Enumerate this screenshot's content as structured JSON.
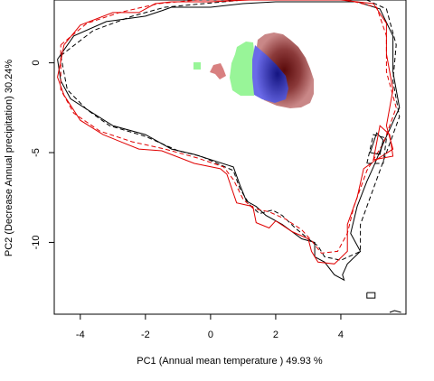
{
  "chart_data": {
    "type": "contour_density",
    "xlabel": "PC1 (Annual mean temperature ) 49.93 %",
    "ylabel": "PC2 (Decrease Annual precipitation) 30.24%",
    "xlim": [
      -4.8,
      6.0
    ],
    "ylim": [
      -14.0,
      3.5
    ],
    "x_ticks": [
      -4,
      -2,
      0,
      2,
      4
    ],
    "y_ticks": [
      0,
      -5,
      -10
    ],
    "x_tick_labels": [
      "-4",
      "-2",
      "0",
      "2",
      "4"
    ],
    "y_tick_labels": [
      "0",
      "-5",
      "-10"
    ],
    "grid": false,
    "legend": "none",
    "colors": {
      "black_contour": "#000000",
      "red_contour": "#e00000",
      "niche_dark": "#5a0a0a",
      "niche_light": "#c98787",
      "overlap_blue": "#2828c8",
      "native_green": "#98f598",
      "outlier_pink": "#d88080"
    },
    "series": [
      {
        "style": "solid",
        "color": "#000000",
        "points": [
          [
            -4.7,
            0.2
          ],
          [
            -4.2,
            1.5
          ],
          [
            -3.2,
            2.3
          ],
          [
            -2,
            2.6
          ],
          [
            -1.5,
            2.9
          ],
          [
            -1.2,
            3.1
          ],
          [
            0,
            3.1
          ],
          [
            1,
            3.3
          ],
          [
            2,
            3.4
          ],
          [
            3,
            3.4
          ],
          [
            4.5,
            3.4
          ],
          [
            5.2,
            3.0
          ],
          [
            5.6,
            1.5
          ],
          [
            5.6,
            -0.5
          ],
          [
            5.8,
            -2.5
          ],
          [
            5.3,
            -4.5
          ],
          [
            5.0,
            -5.8
          ],
          [
            4.8,
            -6.6
          ],
          [
            4.5,
            -8
          ],
          [
            4.3,
            -9.5
          ],
          [
            4.6,
            -10.5
          ],
          [
            4.2,
            -11.2
          ],
          [
            4.05,
            -11.8
          ],
          [
            4.1,
            -12.1
          ],
          [
            3.8,
            -11.8
          ],
          [
            3.5,
            -11.1
          ],
          [
            3.2,
            -10.8
          ],
          [
            3.2,
            -10.0
          ],
          [
            2.8,
            -9.8
          ],
          [
            2.2,
            -9.0
          ],
          [
            1.7,
            -8.5
          ],
          [
            1.4,
            -8.0
          ],
          [
            1.1,
            -7.7
          ],
          [
            0.9,
            -6.8
          ],
          [
            0.7,
            -5.8
          ],
          [
            -0.5,
            -5.1
          ],
          [
            -1.2,
            -4.8
          ],
          [
            -2.0,
            -4.0
          ],
          [
            -3.0,
            -3.5
          ],
          [
            -3.7,
            -2.7
          ],
          [
            -4.3,
            -2.0
          ],
          [
            -4.6,
            -1.0
          ],
          [
            -4.7,
            0.2
          ]
        ]
      },
      {
        "style": "dashed",
        "color": "#000000",
        "points": [
          [
            -4.6,
            0.4
          ],
          [
            -3.6,
            1.8
          ],
          [
            -2.4,
            2.6
          ],
          [
            -1.4,
            3.1
          ],
          [
            -0.2,
            3.3
          ],
          [
            1,
            3.5
          ],
          [
            2.2,
            3.5
          ],
          [
            3.5,
            3.5
          ],
          [
            4.8,
            3.5
          ],
          [
            5.4,
            3.0
          ],
          [
            5.7,
            1.0
          ],
          [
            5.6,
            -1.0
          ],
          [
            5.8,
            -3.0
          ],
          [
            5.4,
            -5.0
          ],
          [
            5.0,
            -7.0
          ],
          [
            4.6,
            -9.0
          ],
          [
            4.6,
            -10.5
          ],
          [
            4.0,
            -11.0
          ],
          [
            3.5,
            -10.8
          ],
          [
            3.3,
            -10.2
          ],
          [
            3.0,
            -9.8
          ],
          [
            2.6,
            -9.2
          ],
          [
            2.2,
            -8.5
          ],
          [
            1.9,
            -8.2
          ],
          [
            1.5,
            -8.4
          ],
          [
            1.2,
            -7.9
          ],
          [
            0.9,
            -7.0
          ],
          [
            0.7,
            -6.0
          ],
          [
            -0.3,
            -5.2
          ],
          [
            -1.0,
            -4.9
          ],
          [
            -2.0,
            -4.1
          ],
          [
            -3.1,
            -3.5
          ],
          [
            -3.8,
            -2.6
          ],
          [
            -4.4,
            -1.5
          ],
          [
            -4.6,
            0.4
          ]
        ]
      },
      {
        "style": "solid",
        "color": "#e00000",
        "points": [
          [
            -4.5,
            1.0
          ],
          [
            -4.0,
            2.1
          ],
          [
            -3.0,
            2.8
          ],
          [
            -2.2,
            2.8
          ],
          [
            -1.7,
            3.3
          ],
          [
            -1.2,
            3.4
          ],
          [
            0,
            3.4
          ],
          [
            1.2,
            3.5
          ],
          [
            2.5,
            3.5
          ],
          [
            4.0,
            3.5
          ],
          [
            5.0,
            3.3
          ],
          [
            5.4,
            2.2
          ],
          [
            5.4,
            0.5
          ],
          [
            5.6,
            -1.5
          ],
          [
            5.4,
            -3.5
          ],
          [
            5.6,
            -4.8
          ],
          [
            5.0,
            -5.5
          ],
          [
            4.7,
            -5.9
          ],
          [
            4.5,
            -7.5
          ],
          [
            4.2,
            -9.0
          ],
          [
            4.2,
            -10.5
          ],
          [
            3.8,
            -11.2
          ],
          [
            3.3,
            -11.1
          ],
          [
            3.1,
            -10.5
          ],
          [
            3.0,
            -9.8
          ],
          [
            2.5,
            -9.4
          ],
          [
            2.0,
            -8.8
          ],
          [
            1.8,
            -9.2
          ],
          [
            1.4,
            -8.9
          ],
          [
            1.3,
            -8.0
          ],
          [
            0.8,
            -7.8
          ],
          [
            0.5,
            -6.2
          ],
          [
            0.3,
            -5.9
          ],
          [
            -0.5,
            -5.6
          ],
          [
            -1.5,
            -4.9
          ],
          [
            -2.2,
            -4.8
          ],
          [
            -3.3,
            -4.0
          ],
          [
            -4.0,
            -3.2
          ],
          [
            -4.5,
            -1.8
          ],
          [
            -4.7,
            -0.8
          ],
          [
            -4.5,
            1.0
          ]
        ]
      },
      {
        "style": "dashed",
        "color": "#e00000",
        "points": [
          [
            -4.6,
            1.0
          ],
          [
            -3.8,
            2.2
          ],
          [
            -2.8,
            2.8
          ],
          [
            -1.6,
            3.3
          ],
          [
            -0.4,
            3.5
          ],
          [
            1.0,
            3.5
          ],
          [
            2.6,
            3.5
          ],
          [
            4.2,
            3.5
          ],
          [
            5.1,
            3.1
          ],
          [
            5.4,
            1.5
          ],
          [
            5.4,
            -0.5
          ],
          [
            5.7,
            -2.5
          ],
          [
            5.3,
            -4.5
          ],
          [
            4.8,
            -6.0
          ],
          [
            4.4,
            -8.0
          ],
          [
            4.2,
            -9.5
          ],
          [
            3.9,
            -10.5
          ],
          [
            3.4,
            -10.6
          ],
          [
            3.1,
            -9.9
          ],
          [
            2.8,
            -9.3
          ],
          [
            2.3,
            -8.7
          ],
          [
            1.8,
            -8.3
          ],
          [
            1.3,
            -8.1
          ],
          [
            1.0,
            -7.6
          ],
          [
            0.7,
            -6.5
          ],
          [
            0.4,
            -5.8
          ],
          [
            -0.4,
            -5.3
          ],
          [
            -1.4,
            -4.8
          ],
          [
            -2.4,
            -4.4
          ],
          [
            -3.4,
            -3.8
          ],
          [
            -4.2,
            -2.8
          ],
          [
            -4.6,
            -1.5
          ],
          [
            -4.6,
            1.0
          ]
        ]
      },
      {
        "style": "solid",
        "color": "#000000",
        "points": [
          [
            4.9,
            -5.0
          ],
          [
            5.1,
            -3.9
          ],
          [
            5.3,
            -4.3
          ],
          [
            5.2,
            -5.1
          ],
          [
            4.9,
            -5.0
          ]
        ]
      },
      {
        "style": "dashed",
        "color": "#000000",
        "points": [
          [
            4.8,
            -5.6
          ],
          [
            5.0,
            -4.0
          ],
          [
            5.4,
            -4.2
          ],
          [
            5.3,
            -5.6
          ],
          [
            4.8,
            -5.6
          ]
        ]
      },
      {
        "style": "solid",
        "color": "#e00000",
        "points": [
          [
            5.0,
            -5.4
          ],
          [
            5.2,
            -3.5
          ],
          [
            5.5,
            -4.0
          ],
          [
            5.6,
            -5.2
          ],
          [
            5.0,
            -5.4
          ]
        ]
      },
      {
        "style": "solid",
        "color": "#000000",
        "points": [
          [
            4.8,
            -12.8
          ],
          [
            5.05,
            -12.8
          ],
          [
            5.05,
            -13.1
          ],
          [
            4.8,
            -13.1
          ],
          [
            4.8,
            -12.8
          ]
        ]
      },
      {
        "style": "solid",
        "color": "#000000",
        "points": [
          [
            5.5,
            -13.9
          ],
          [
            5.65,
            -13.8
          ],
          [
            5.85,
            -13.9
          ]
        ]
      }
    ]
  }
}
